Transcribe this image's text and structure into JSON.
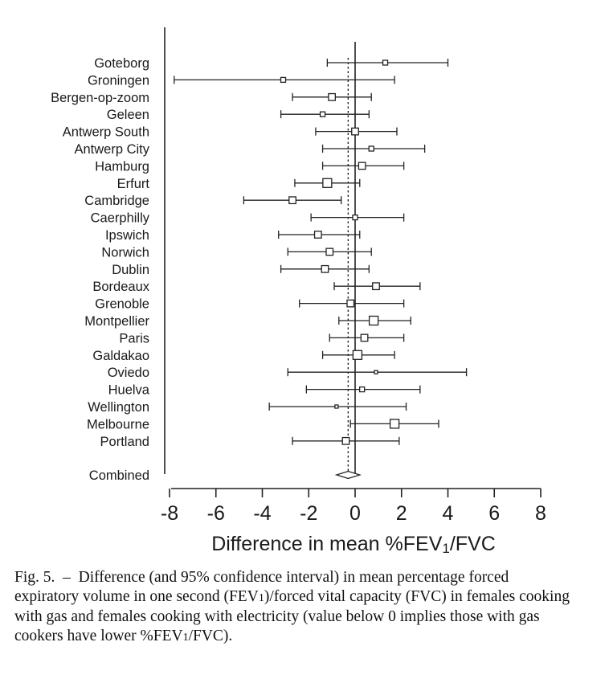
{
  "chart_data": {
    "type": "forest",
    "xlabel": "Difference in mean  %FEV1/FVC",
    "xlim": [
      -8,
      8
    ],
    "xticks": [
      "-8",
      "-6",
      "-4",
      "-2",
      "0",
      "2",
      "4",
      "6",
      "8"
    ],
    "reference_line": 0,
    "combined_line": -0.3,
    "rows": [
      {
        "label": "Goteborg",
        "mean": 1.3,
        "lo": -1.2,
        "hi": 4.0,
        "size": 1
      },
      {
        "label": "Groningen",
        "mean": -3.1,
        "lo": -7.8,
        "hi": 1.7,
        "size": 1
      },
      {
        "label": "Bergen-op-zoom",
        "mean": -1.0,
        "lo": -2.7,
        "hi": 0.7,
        "size": 2
      },
      {
        "label": "Geleen",
        "mean": -1.4,
        "lo": -3.2,
        "hi": 0.6,
        "size": 1
      },
      {
        "label": "Antwerp South",
        "mean": 0.0,
        "lo": -1.7,
        "hi": 1.8,
        "size": 2
      },
      {
        "label": "Antwerp City",
        "mean": 0.7,
        "lo": -1.4,
        "hi": 3.0,
        "size": 1
      },
      {
        "label": "Hamburg",
        "mean": 0.3,
        "lo": -1.4,
        "hi": 2.1,
        "size": 2
      },
      {
        "label": "Erfurt",
        "mean": -1.2,
        "lo": -2.6,
        "hi": 0.2,
        "size": 3
      },
      {
        "label": "Cambridge",
        "mean": -2.7,
        "lo": -4.8,
        "hi": -0.6,
        "size": 2
      },
      {
        "label": "Caerphilly",
        "mean": 0.0,
        "lo": -1.9,
        "hi": 2.1,
        "size": 1
      },
      {
        "label": "Ipswich",
        "mean": -1.6,
        "lo": -3.3,
        "hi": 0.2,
        "size": 2
      },
      {
        "label": "Norwich",
        "mean": -1.1,
        "lo": -2.9,
        "hi": 0.7,
        "size": 2
      },
      {
        "label": "Dublin",
        "mean": -1.3,
        "lo": -3.2,
        "hi": 0.6,
        "size": 2
      },
      {
        "label": "Bordeaux",
        "mean": 0.9,
        "lo": -0.9,
        "hi": 2.8,
        "size": 2
      },
      {
        "label": "Grenoble",
        "mean": -0.2,
        "lo": -2.4,
        "hi": 2.1,
        "size": 2
      },
      {
        "label": "Montpellier",
        "mean": 0.8,
        "lo": -0.7,
        "hi": 2.4,
        "size": 3
      },
      {
        "label": "Paris",
        "mean": 0.4,
        "lo": -1.1,
        "hi": 2.1,
        "size": 2
      },
      {
        "label": "Galdakao",
        "mean": 0.1,
        "lo": -1.4,
        "hi": 1.7,
        "size": 3
      },
      {
        "label": "Oviedo",
        "mean": 0.9,
        "lo": -2.9,
        "hi": 4.8,
        "size": 0
      },
      {
        "label": "Huelva",
        "mean": 0.3,
        "lo": -2.1,
        "hi": 2.8,
        "size": 1
      },
      {
        "label": "Wellington",
        "mean": -0.8,
        "lo": -3.7,
        "hi": 2.2,
        "size": 0
      },
      {
        "label": "Melbourne",
        "mean": 1.7,
        "lo": -0.2,
        "hi": 3.6,
        "size": 3
      },
      {
        "label": "Portland",
        "mean": -0.4,
        "lo": -2.7,
        "hi": 1.9,
        "size": 2
      }
    ],
    "combined": {
      "label": "Combined",
      "mean": -0.3,
      "lo": -0.8,
      "hi": 0.2
    }
  },
  "caption": {
    "fig_label": "Fig. 5.",
    "dash": "–",
    "part1": "Difference (and 95% confidence interval) in mean percentage forced expiratory volume in one second (FEV",
    "sub1": "1",
    "part2": ")/forced vital capacity (FVC) in females cooking with gas and females cooking with electricity (value below 0 implies those with gas cookers have lower %FEV",
    "sub2": "1",
    "part3": "/FVC)."
  }
}
